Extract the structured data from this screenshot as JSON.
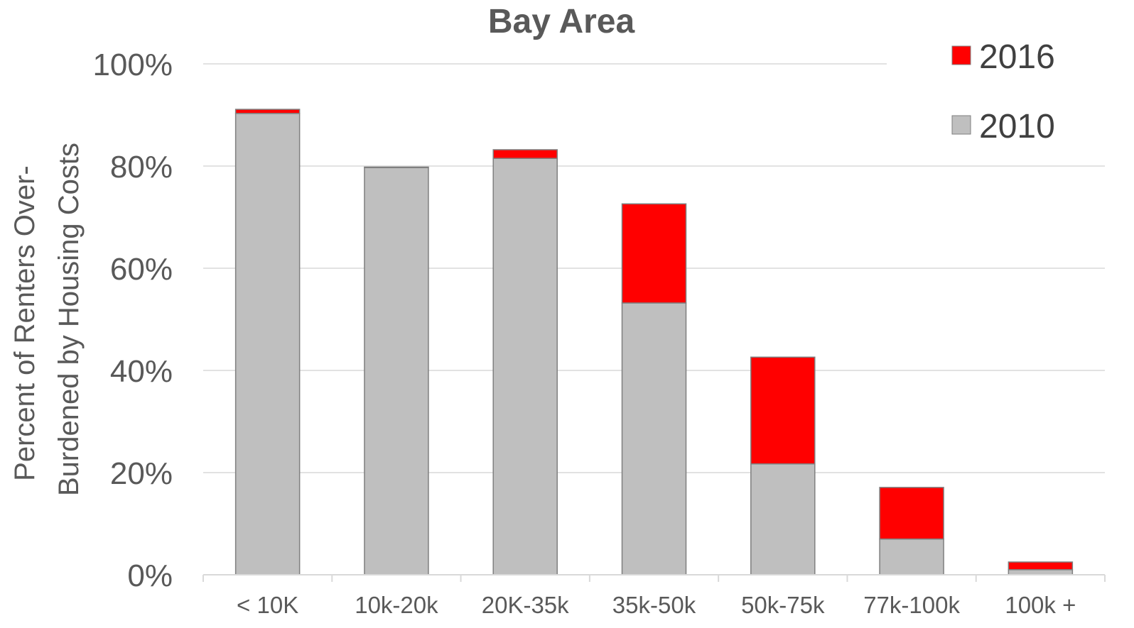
{
  "chart_data": {
    "type": "bar",
    "stacked": true,
    "title": "Bay Area",
    "ylabel_lines": [
      "Percent of Renters Over-",
      "Burdened by Housing Costs"
    ],
    "xlabel": "",
    "categories": [
      "< 10K",
      "10k-20k",
      "20K-35k",
      "35k-50k",
      "50k-75k",
      "77k-100k",
      "100k +"
    ],
    "ylim": [
      0,
      100
    ],
    "yticks": [
      0,
      20,
      40,
      60,
      80,
      100
    ],
    "ytick_labels": [
      "0%",
      "20%",
      "40%",
      "60%",
      "80%",
      "100%"
    ],
    "grid": true,
    "legend_position": "top-right",
    "series": [
      {
        "name": "2010",
        "color": "#bfbfbf",
        "values": [
          90.3,
          79.7,
          81.5,
          53.2,
          21.7,
          7.0,
          1.0
        ]
      },
      {
        "name": "2016",
        "color": "#ff0000",
        "values": [
          0.8,
          0.1,
          1.7,
          19.4,
          20.9,
          10.1,
          1.5
        ]
      }
    ],
    "legend_order": [
      "2016",
      "2010"
    ],
    "colors": {
      "text": "#595959",
      "grid": "#d9d9d9",
      "bar_outline": "#7f7f7f"
    }
  }
}
